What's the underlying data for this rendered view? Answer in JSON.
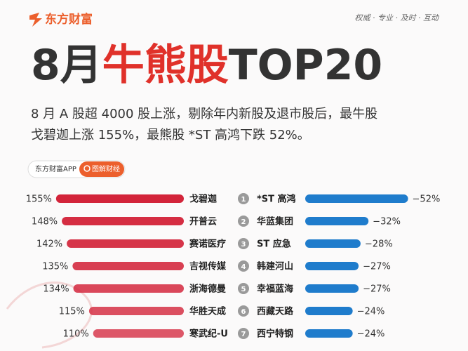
{
  "header": {
    "logo": "东方财富",
    "slogan": "权威 · 专业 · 及时 · 互动",
    "title_parts": [
      "8月",
      "牛熊股",
      "TOP20"
    ],
    "subtitle": [
      "8 月 A 股超 4000 股上涨，剔除年内新股及退市股后，最牛股",
      "戈碧迦上涨 155%，最熊股 *ST 高鸿下跌 52%。"
    ],
    "badge": {
      "app": "东方财富APP",
      "tag": "图解财经"
    }
  },
  "chart_data": [
    {
      "type": "hbar-left",
      "categories": [
        "戈碧迦",
        "开普云",
        "赛诺医疗",
        "吉视传媒",
        "浙海德曼",
        "华胜天成",
        "寒武纪-U"
      ],
      "values": [
        155,
        148,
        142,
        135,
        134,
        115,
        110
      ],
      "value_labels": [
        "155%",
        "148%",
        "142%",
        "135%",
        "134%",
        "115%",
        "110%"
      ],
      "xlim": [
        0,
        160
      ],
      "color": "#d3243a"
    },
    {
      "type": "hbar-right",
      "ranks": [
        1,
        2,
        3,
        4,
        5,
        6,
        7
      ],
      "categories": [
        "*ST 高鸿",
        "华蓝集团",
        "ST 应急",
        "韩建河山",
        "幸福蓝海",
        "西藏天路",
        "西宁特钢"
      ],
      "values": [
        -52,
        -32,
        -28,
        -27,
        -27,
        -24,
        -24
      ],
      "value_labels": [
        "−52%",
        "−32%",
        "−28%",
        "−27%",
        "−27%",
        "−24%",
        "−24%"
      ],
      "xlim": [
        0,
        -55
      ],
      "color": "#1f7ccc"
    }
  ]
}
